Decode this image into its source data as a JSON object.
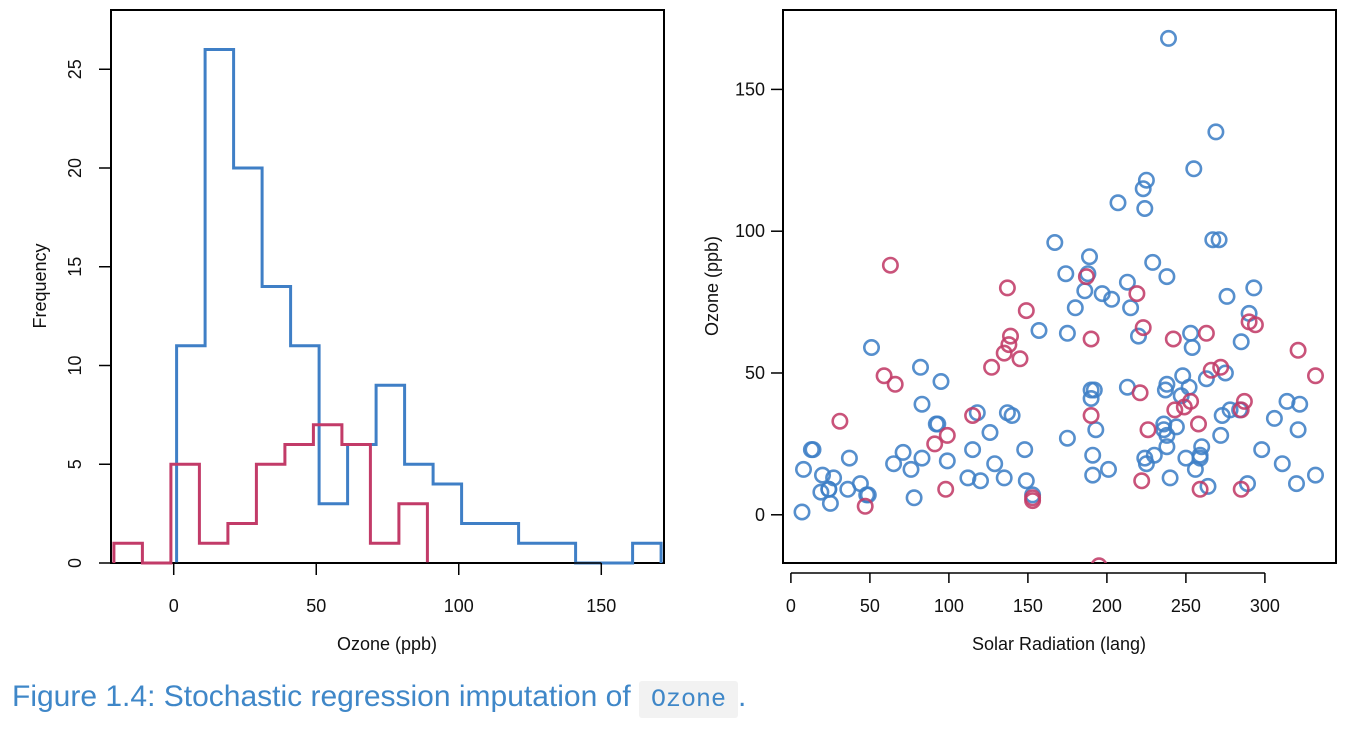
{
  "chart_data": [
    {
      "type": "histogram",
      "xlabel": "Ozone (ppb)",
      "ylabel": "Frequency",
      "xlim": [
        -22,
        172
      ],
      "ylim": [
        0,
        28
      ],
      "x_ticks": [
        0,
        50,
        100,
        150
      ],
      "y_ticks": [
        0,
        5,
        10,
        15,
        20,
        25
      ],
      "colors": {
        "observed": "#3f7fc6",
        "imputed": "#c23b68"
      },
      "series": [
        {
          "bins": [
            [
              1,
              11,
              11
            ],
            [
              11,
              21,
              26
            ],
            [
              21,
              31,
              20
            ],
            [
              31,
              41,
              14
            ],
            [
              41,
              51,
              11
            ],
            [
              51,
              61,
              3
            ],
            [
              61,
              71,
              6
            ],
            [
              71,
              81,
              9
            ],
            [
              81,
              91,
              5
            ],
            [
              91,
              101,
              4
            ],
            [
              101,
              121,
              2
            ],
            [
              121,
              141,
              1
            ],
            [
              141,
              161,
              0
            ],
            [
              161,
              171,
              1
            ]
          ]
        },
        {
          "bins": [
            [
              -21,
              -11,
              1
            ],
            [
              -11,
              -1,
              0
            ],
            [
              -1,
              9,
              5
            ],
            [
              9,
              19,
              1
            ],
            [
              19,
              29,
              2
            ],
            [
              29,
              39,
              5
            ],
            [
              39,
              49,
              6
            ],
            [
              49,
              59,
              7
            ],
            [
              59,
              69,
              6
            ],
            [
              69,
              79,
              1
            ],
            [
              79,
              89,
              3
            ]
          ]
        }
      ]
    },
    {
      "type": "scatter",
      "xlabel": "Solar Radiation (lang)",
      "ylabel": "Ozone (ppb)",
      "xlim": [
        -5,
        345
      ],
      "ylim": [
        -17,
        178
      ],
      "x_ticks": [
        0,
        50,
        100,
        150,
        200,
        250,
        300
      ],
      "y_ticks": [
        0,
        50,
        100,
        150
      ],
      "colors": {
        "observed": "#3f7fc6",
        "imputed": "#c23b68"
      },
      "series": [
        {
          "points": [
            [
              7,
              1
            ],
            [
              8,
              16
            ],
            [
              13,
              23
            ],
            [
              14,
              23
            ],
            [
              19,
              8
            ],
            [
              20,
              14
            ],
            [
              24,
              9
            ],
            [
              24,
              9
            ],
            [
              25,
              4
            ],
            [
              27,
              13
            ],
            [
              36,
              9
            ],
            [
              37,
              20
            ],
            [
              44,
              11
            ],
            [
              48,
              7
            ],
            [
              49,
              7
            ],
            [
              51,
              59
            ],
            [
              65,
              18
            ],
            [
              71,
              22
            ],
            [
              76,
              16
            ],
            [
              78,
              6
            ],
            [
              82,
              52
            ],
            [
              83,
              20
            ],
            [
              83,
              39
            ],
            [
              92,
              32
            ],
            [
              93,
              32
            ],
            [
              95,
              47
            ],
            [
              99,
              19
            ],
            [
              112,
              13
            ],
            [
              115,
              23
            ],
            [
              118,
              36
            ],
            [
              120,
              12
            ],
            [
              126,
              29
            ],
            [
              129,
              18
            ],
            [
              135,
              13
            ],
            [
              137,
              36
            ],
            [
              140,
              35
            ],
            [
              148,
              23
            ],
            [
              149,
              12
            ],
            [
              153,
              7
            ],
            [
              157,
              65
            ],
            [
              167,
              96
            ],
            [
              174,
              85
            ],
            [
              175,
              64
            ],
            [
              175,
              27
            ],
            [
              180,
              73
            ],
            [
              186,
              79
            ],
            [
              188,
              85
            ],
            [
              189,
              91
            ],
            [
              190,
              44
            ],
            [
              190,
              41
            ],
            [
              191,
              21
            ],
            [
              191,
              14
            ],
            [
              192,
              44
            ],
            [
              193,
              30
            ],
            [
              197,
              78
            ],
            [
              201,
              16
            ],
            [
              203,
              76
            ],
            [
              207,
              110
            ],
            [
              213,
              45
            ],
            [
              213,
              82
            ],
            [
              215,
              73
            ],
            [
              220,
              63
            ],
            [
              223,
              115
            ],
            [
              224,
              108
            ],
            [
              224,
              20
            ],
            [
              225,
              18
            ],
            [
              225,
              118
            ],
            [
              229,
              89
            ],
            [
              230,
              21
            ],
            [
              236,
              32
            ],
            [
              237,
              44
            ],
            [
              238,
              46
            ],
            [
              238,
              84
            ],
            [
              238,
              28
            ],
            [
              238,
              24
            ],
            [
              240,
              13
            ],
            [
              244,
              31
            ],
            [
              247,
              42
            ],
            [
              248,
              49
            ],
            [
              250,
              20
            ],
            [
              252,
              45
            ],
            [
              253,
              64
            ],
            [
              254,
              59
            ],
            [
              255,
              122
            ],
            [
              256,
              16
            ],
            [
              259,
              20
            ],
            [
              259,
              21
            ],
            [
              260,
              24
            ],
            [
              263,
              48
            ],
            [
              264,
              10
            ],
            [
              267,
              97
            ],
            [
              269,
              135
            ],
            [
              271,
              97
            ],
            [
              272,
              28
            ],
            [
              273,
              35
            ],
            [
              275,
              50
            ],
            [
              276,
              77
            ],
            [
              278,
              37
            ],
            [
              284,
              37
            ],
            [
              285,
              61
            ],
            [
              289,
              11
            ],
            [
              290,
              71
            ],
            [
              293,
              80
            ],
            [
              298,
              23
            ],
            [
              306,
              34
            ],
            [
              311,
              18
            ],
            [
              314,
              40
            ],
            [
              320,
              11
            ],
            [
              321,
              30
            ],
            [
              322,
              39
            ],
            [
              332,
              14
            ],
            [
              239,
              168
            ],
            [
              236,
              30
            ]
          ]
        },
        {
          "points": [
            [
              31,
              33
            ],
            [
              47,
              3
            ],
            [
              59,
              49
            ],
            [
              63,
              88
            ],
            [
              66,
              46
            ],
            [
              91,
              25
            ],
            [
              98,
              9
            ],
            [
              99,
              28
            ],
            [
              115,
              35
            ],
            [
              127,
              52
            ],
            [
              135,
              57
            ],
            [
              137,
              80
            ],
            [
              138,
              60
            ],
            [
              139,
              63
            ],
            [
              145,
              55
            ],
            [
              149,
              72
            ],
            [
              153,
              5
            ],
            [
              153,
              6
            ],
            [
              187,
              84
            ],
            [
              190,
              62
            ],
            [
              195,
              -18
            ],
            [
              219,
              78
            ],
            [
              221,
              43
            ],
            [
              222,
              12
            ],
            [
              223,
              66
            ],
            [
              226,
              30
            ],
            [
              242,
              62
            ],
            [
              243,
              37
            ],
            [
              249,
              38
            ],
            [
              253,
              40
            ],
            [
              258,
              32
            ],
            [
              259,
              9
            ],
            [
              263,
              64
            ],
            [
              266,
              51
            ],
            [
              272,
              52
            ],
            [
              285,
              37
            ],
            [
              287,
              40
            ],
            [
              290,
              68
            ],
            [
              294,
              67
            ],
            [
              321,
              58
            ],
            [
              332,
              49
            ],
            [
              285,
              9
            ],
            [
              190,
              35
            ]
          ]
        }
      ]
    }
  ],
  "caption": {
    "prefix": "Figure 1.4: Stochastic regression imputation of",
    "code": "Ozone",
    "suffix": "."
  }
}
